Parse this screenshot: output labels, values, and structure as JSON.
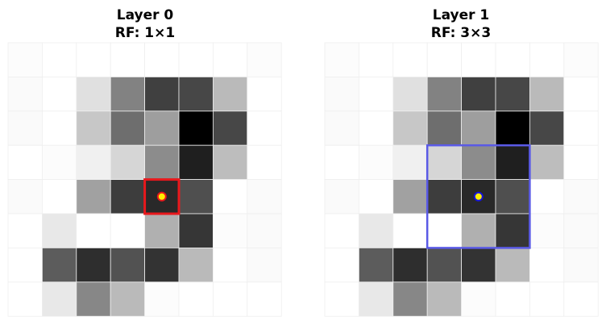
{
  "chart_data": [
    {
      "type": "heatmap",
      "title": "Layer 0",
      "subtitle": "RF: 1×1",
      "colormap": "gray_r",
      "grid": true,
      "grid_color": "#eeeeee",
      "values": [
        [
          0.01,
          0.0,
          0.0,
          0.0,
          0.0,
          0.0,
          0.0,
          0.01
        ],
        [
          0.02,
          0.0,
          0.12,
          0.49,
          0.75,
          0.72,
          0.27,
          0.0
        ],
        [
          0.02,
          0.0,
          0.22,
          0.57,
          0.38,
          1.0,
          0.72,
          0.0
        ],
        [
          0.0,
          0.01,
          0.06,
          0.16,
          0.45,
          0.88,
          0.26,
          0.0
        ],
        [
          0.02,
          0.0,
          0.37,
          0.76,
          0.84,
          0.69,
          0.0,
          0.02
        ],
        [
          0.0,
          0.09,
          0.0,
          0.0,
          0.31,
          0.79,
          0.01,
          0.02
        ],
        [
          0.0,
          0.64,
          0.82,
          0.68,
          0.8,
          0.27,
          0.0,
          0.02
        ],
        [
          0.0,
          0.09,
          0.47,
          0.27,
          0.01,
          0.0,
          0.0,
          0.0
        ]
      ],
      "highlight": {
        "row": 4,
        "col": 4,
        "size": 1,
        "color": "#e8181c"
      },
      "marker": {
        "row": 4,
        "col": 4,
        "fill": "#ffee00",
        "edge": "#e8181c"
      }
    },
    {
      "type": "heatmap",
      "title": "Layer 1",
      "subtitle": "RF: 3×3",
      "colormap": "gray_r",
      "grid": true,
      "grid_color": "#eeeeee",
      "values": [
        [
          0.01,
          0.0,
          0.0,
          0.0,
          0.0,
          0.0,
          0.0,
          0.01
        ],
        [
          0.02,
          0.0,
          0.12,
          0.49,
          0.75,
          0.72,
          0.27,
          0.0
        ],
        [
          0.02,
          0.0,
          0.22,
          0.57,
          0.38,
          1.0,
          0.72,
          0.0
        ],
        [
          0.0,
          0.01,
          0.06,
          0.16,
          0.45,
          0.88,
          0.26,
          0.0
        ],
        [
          0.02,
          0.0,
          0.37,
          0.76,
          0.84,
          0.69,
          0.0,
          0.02
        ],
        [
          0.0,
          0.09,
          0.0,
          0.0,
          0.31,
          0.79,
          0.01,
          0.02
        ],
        [
          0.0,
          0.64,
          0.82,
          0.68,
          0.8,
          0.27,
          0.0,
          0.02
        ],
        [
          0.0,
          0.09,
          0.47,
          0.27,
          0.01,
          0.0,
          0.0,
          0.0
        ]
      ],
      "highlight": {
        "row": 4,
        "col": 4,
        "size": 3,
        "color": "#5a5ae6"
      },
      "marker": {
        "row": 4,
        "col": 4,
        "fill": "#ffee00",
        "edge": "#1414dc"
      }
    }
  ]
}
